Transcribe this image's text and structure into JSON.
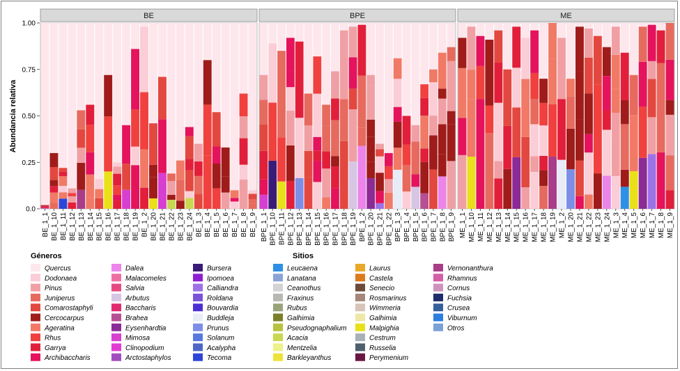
{
  "chart_data": {
    "type": "bar",
    "stacked": true,
    "ylabel": "Abundancia relativa",
    "ylim": [
      0,
      1
    ],
    "yticks": [
      "0.0",
      "0.25",
      "0.50",
      "0.75",
      "1.00"
    ],
    "facets": [
      {
        "name": "BE",
        "samples": [
          "BE_1_1",
          "BE_1_10",
          "BE_1_11",
          "BE_1_12",
          "BE_1_13",
          "BE_1_14",
          "BE_1_15",
          "BE_1_16",
          "BE_1_17",
          "BE_1_18",
          "BE_1_19",
          "BE_1_2",
          "BE_1_20",
          "BE_1_21",
          "BE_1_22",
          "BE_1_23",
          "BE_1_24",
          "BE_1_3",
          "BE_1_4",
          "BE_1_5",
          "BE_1_6",
          "BE_1_7",
          "BE_1_8",
          "BE_1_9"
        ],
        "totals": [
          0.02,
          0.3,
          0.22,
          0.11,
          0.53,
          0.56,
          0.16,
          0.72,
          0.25,
          0.45,
          0.86,
          0.98,
          0.46,
          0.71,
          0.19,
          0.26,
          0.44,
          0.35,
          0.8,
          0.52,
          0.33,
          0.1,
          0.62,
          0.1
        ]
      },
      {
        "name": "BPE",
        "samples": [
          "BPE_1_1",
          "BPE_1_10",
          "BPE_1_11",
          "BPE_1_12",
          "BPE_1_13",
          "BPE_1_14",
          "BPE_1_15",
          "BPE_1_16",
          "BPE_1_17",
          "BPE_1_18",
          "BPE_1_19",
          "BPE_1_2",
          "BPE_1_20",
          "BPE_1_21",
          "BPE_1_22",
          "BPE_1_3",
          "BPE_1_4",
          "BPE_1_5",
          "BPE_1_6",
          "BPE_1_7",
          "BPE_1_8",
          "BPE_1_9"
        ],
        "totals": [
          0.72,
          0.89,
          0.85,
          0.92,
          0.9,
          0.62,
          0.82,
          0.56,
          0.74,
          0.96,
          0.98,
          0.99,
          0.72,
          0.35,
          0.3,
          0.81,
          0.5,
          0.45,
          0.67,
          0.75,
          0.84,
          0.87
        ]
      },
      {
        "name": "ME",
        "samples": [
          "ME_1_1",
          "ME_1_10",
          "ME_1_11",
          "ME_1_12",
          "ME_1_13",
          "ME_1_14",
          "ME_1_15",
          "ME_1_16",
          "ME_1_17",
          "ME_1_18",
          "ME_1_19",
          "ME_1_2",
          "ME_1_20",
          "ME_1_21",
          "ME_1_22",
          "ME_1_23",
          "ME_1_24",
          "ME_1_3",
          "ME_1_4",
          "ME_1_5",
          "ME_1_6",
          "ME_1_7",
          "ME_1_8",
          "ME_1_9"
        ],
        "totals": [
          0.92,
          0.98,
          0.93,
          0.91,
          0.96,
          0.75,
          0.98,
          0.92,
          0.96,
          0.7,
          1.0,
          0.92,
          0.7,
          0.98,
          0.97,
          0.93,
          0.87,
          0.98,
          0.84,
          0.72,
          0.98,
          0.99,
          0.96,
          1.0
        ]
      }
    ],
    "legend_generos_title": "Géneros",
    "legend_sitios_title": "Sitios",
    "legend_columns": [
      [
        [
          "Quercus",
          "#fde7ec"
        ],
        [
          "Dodonaea",
          "#fbcdd6"
        ],
        [
          "Pinus",
          "#f0a0a4"
        ],
        [
          "Juniperus",
          "#e76a5f"
        ],
        [
          "Comarostaphyli",
          "#e2483f"
        ],
        [
          "Cercocarpus",
          "#9f1c1a"
        ],
        [
          "Ageratina",
          "#f17a66"
        ],
        [
          "Rhus",
          "#f0413f"
        ],
        [
          "Garrya",
          "#e21f3a"
        ],
        [
          "Archibaccharis",
          "#e4135c"
        ]
      ],
      [
        [
          "Dalea",
          "#ec84e9"
        ],
        [
          "Malacomeles",
          "#f06fa3"
        ],
        [
          "Salvia",
          "#e64980"
        ],
        [
          "Arbutus",
          "#d7c5e4"
        ],
        [
          "Baccharis",
          "#e22a70"
        ],
        [
          "Brahea",
          "#b74f93"
        ],
        [
          "Eysenhardtia",
          "#8c2a96"
        ],
        [
          "Mimosa",
          "#d73fd0"
        ],
        [
          "Clinopodium",
          "#e23bd4"
        ],
        [
          "Arctostaphylos",
          "#a24dbf"
        ]
      ],
      [
        [
          "Bursera",
          "#3b1b78"
        ],
        [
          "Ipomoea",
          "#8e1ed2"
        ],
        [
          "Calliandra",
          "#9d72e6"
        ],
        [
          "Roldana",
          "#7a53d8"
        ],
        [
          "Bouvardia",
          "#4c2fd4"
        ],
        [
          "Buddleja",
          "#e7ecf7"
        ],
        [
          "Prunus",
          "#7c8ee6"
        ],
        [
          "Solanum",
          "#5877df"
        ],
        [
          "Acalypha",
          "#4c67c6"
        ],
        [
          "Tecoma",
          "#2c45d8"
        ]
      ],
      [
        [
          "Leucaena",
          "#2e8fe6"
        ],
        [
          "Lanatana",
          "#8ba3d6"
        ],
        [
          "Ceanothus",
          "#d3d3d3"
        ],
        [
          "Fraxinus",
          "#b8b7b3"
        ],
        [
          "Rubus",
          "#98a37a"
        ],
        [
          "Galhimia",
          "#7c7e2a"
        ],
        [
          "Pseudognaphalium",
          "#b7c23f"
        ],
        [
          "Acacia",
          "#c8d850"
        ],
        [
          "Mentzelia",
          "#eef08a"
        ],
        [
          "Barkleyanthus",
          "#eee23a"
        ]
      ],
      [
        [
          "Laurus",
          "#e8a92a"
        ],
        [
          "Castela",
          "#dc7a1c"
        ],
        [
          "Senecio",
          "#6e4a3a"
        ],
        [
          "Rosmarinus",
          "#a5867b"
        ],
        [
          "Wimmeria",
          "#d8c3b9"
        ],
        [
          "Galhimia",
          "#efe7a8"
        ],
        [
          "Malpighia",
          "#eae01a"
        ],
        [
          "Cestrum",
          "#a8b0b8"
        ],
        [
          "Russelia",
          "#4f5f6c"
        ],
        [
          "Perymenium",
          "#6a1643"
        ]
      ],
      [
        [
          "Vernonanthura",
          "#a93d88"
        ],
        [
          "Rhamnus",
          "#d45ea7"
        ],
        [
          "Cornus",
          "#cf92bf"
        ],
        [
          "Fuchsia",
          "#1f2e6a"
        ],
        [
          "Crusea",
          "#36609b"
        ],
        [
          "Viburnum",
          "#2b7de0"
        ],
        [
          "Otros",
          "#7aa2d8"
        ]
      ]
    ]
  }
}
